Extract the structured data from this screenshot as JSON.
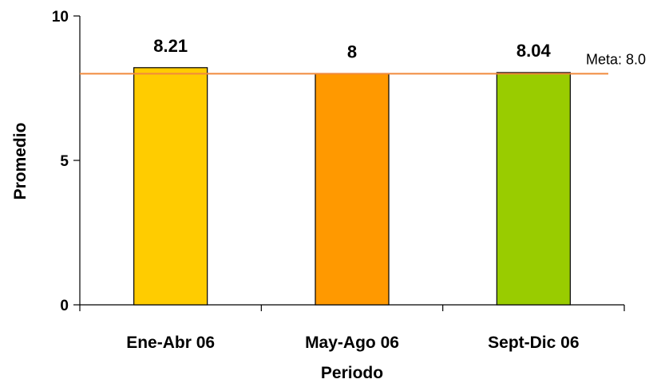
{
  "chart_data": {
    "type": "bar",
    "categories": [
      "Ene-Abr 06",
      "May-Ago 06",
      "Sept-Dic 06"
    ],
    "values": [
      8.21,
      8,
      8.04
    ],
    "data_labels": [
      "8.21",
      "8",
      "8.04"
    ],
    "xlabel": "Periodo",
    "ylabel": "Promedio",
    "ylim": [
      0,
      10
    ],
    "yticks": [
      0,
      5,
      10
    ],
    "ytick_labels": [
      "0",
      "5",
      "10"
    ],
    "bar_colors": [
      "#FFCC00",
      "#FF9900",
      "#99CC00"
    ],
    "grid": false,
    "reference_line": {
      "value": 8.0,
      "label": "Meta: 8.0",
      "color": "#F08A3C"
    }
  }
}
